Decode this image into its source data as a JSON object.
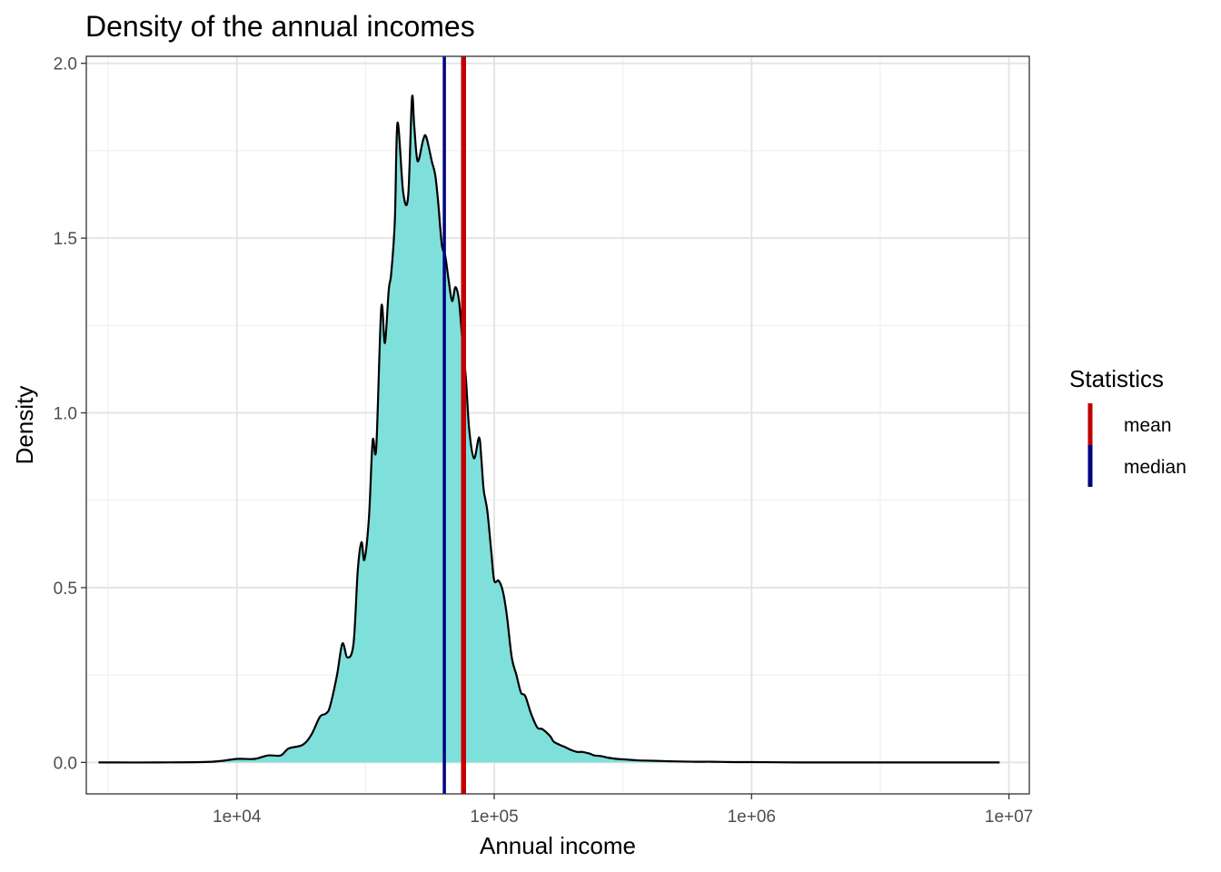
{
  "chart_data": {
    "type": "area",
    "title": "Density of the annual incomes",
    "xlabel": "Annual income",
    "ylabel": "Density",
    "x_scale": "log10",
    "xlim": [
      2600,
      12000000
    ],
    "ylim": [
      -0.09,
      2.02
    ],
    "x_ticks": [
      10000,
      100000,
      1000000,
      10000000
    ],
    "x_tick_labels": [
      "1e+04",
      "1e+05",
      "1e+06",
      "1e+07"
    ],
    "y_ticks": [
      0,
      0.5,
      1,
      1.5,
      2
    ],
    "y_tick_labels": [
      "0.0",
      "0.5",
      "1.0",
      "1.5",
      "2.0"
    ],
    "grid": true,
    "fill_color": "#7fdfdb",
    "line_color": "#000000",
    "density": {
      "x": [
        2900,
        5000,
        8000,
        10000,
        11700,
        13200,
        14800,
        15900,
        18000,
        19500,
        21000,
        22200,
        23000,
        24500,
        25700,
        26900,
        28400,
        29500,
        30500,
        31300,
        32600,
        33700,
        34800,
        36400,
        37600,
        38900,
        39800,
        41100,
        42100,
        44300,
        46300,
        47900,
        48900,
        50400,
        52900,
        54400,
        57200,
        59000,
        60600,
        62600,
        64500,
        66500,
        68600,
        70700,
        73000,
        75300,
        77600,
        80000,
        83500,
        87300,
        89100,
        91000,
        94000,
        97500,
        100000,
        104000,
        108000,
        112000,
        117000,
        122000,
        127000,
        132000,
        139000,
        147000,
        154000,
        165000,
        170000,
        180000,
        187000,
        200000,
        210000,
        220000,
        235000,
        245000,
        260000,
        280000,
        300000,
        330000,
        360000,
        400000,
        450000,
        500000,
        600000,
        700000,
        850000,
        1000000,
        1500000,
        2000000,
        3000000,
        5000000,
        9200000
      ],
      "y": [
        0.0,
        0.0,
        0.002,
        0.01,
        0.01,
        0.02,
        0.02,
        0.04,
        0.05,
        0.08,
        0.13,
        0.14,
        0.16,
        0.25,
        0.34,
        0.3,
        0.34,
        0.55,
        0.63,
        0.58,
        0.7,
        0.92,
        0.9,
        1.3,
        1.2,
        1.35,
        1.4,
        1.55,
        1.83,
        1.63,
        1.62,
        1.9,
        1.82,
        1.72,
        1.78,
        1.79,
        1.72,
        1.68,
        1.6,
        1.48,
        1.45,
        1.38,
        1.32,
        1.36,
        1.32,
        1.2,
        1.1,
        0.95,
        0.87,
        0.93,
        0.87,
        0.78,
        0.72,
        0.6,
        0.52,
        0.52,
        0.49,
        0.42,
        0.3,
        0.25,
        0.2,
        0.19,
        0.14,
        0.1,
        0.095,
        0.075,
        0.06,
        0.05,
        0.045,
        0.035,
        0.03,
        0.03,
        0.025,
        0.02,
        0.018,
        0.013,
        0.01,
        0.008,
        0.006,
        0.005,
        0.004,
        0.003,
        0.002,
        0.002,
        0.001,
        0.001,
        0.0,
        0.0,
        0.0,
        0.0,
        0.0
      ]
    },
    "vlines": [
      {
        "name": "mean",
        "x": 76000,
        "color": "#c00000"
      },
      {
        "name": "median",
        "x": 64000,
        "color": "#000080"
      }
    ],
    "legend": {
      "title": "Statistics",
      "placement": "right",
      "items": [
        {
          "label": "mean",
          "color": "#c00000"
        },
        {
          "label": "median",
          "color": "#000080"
        }
      ]
    }
  }
}
